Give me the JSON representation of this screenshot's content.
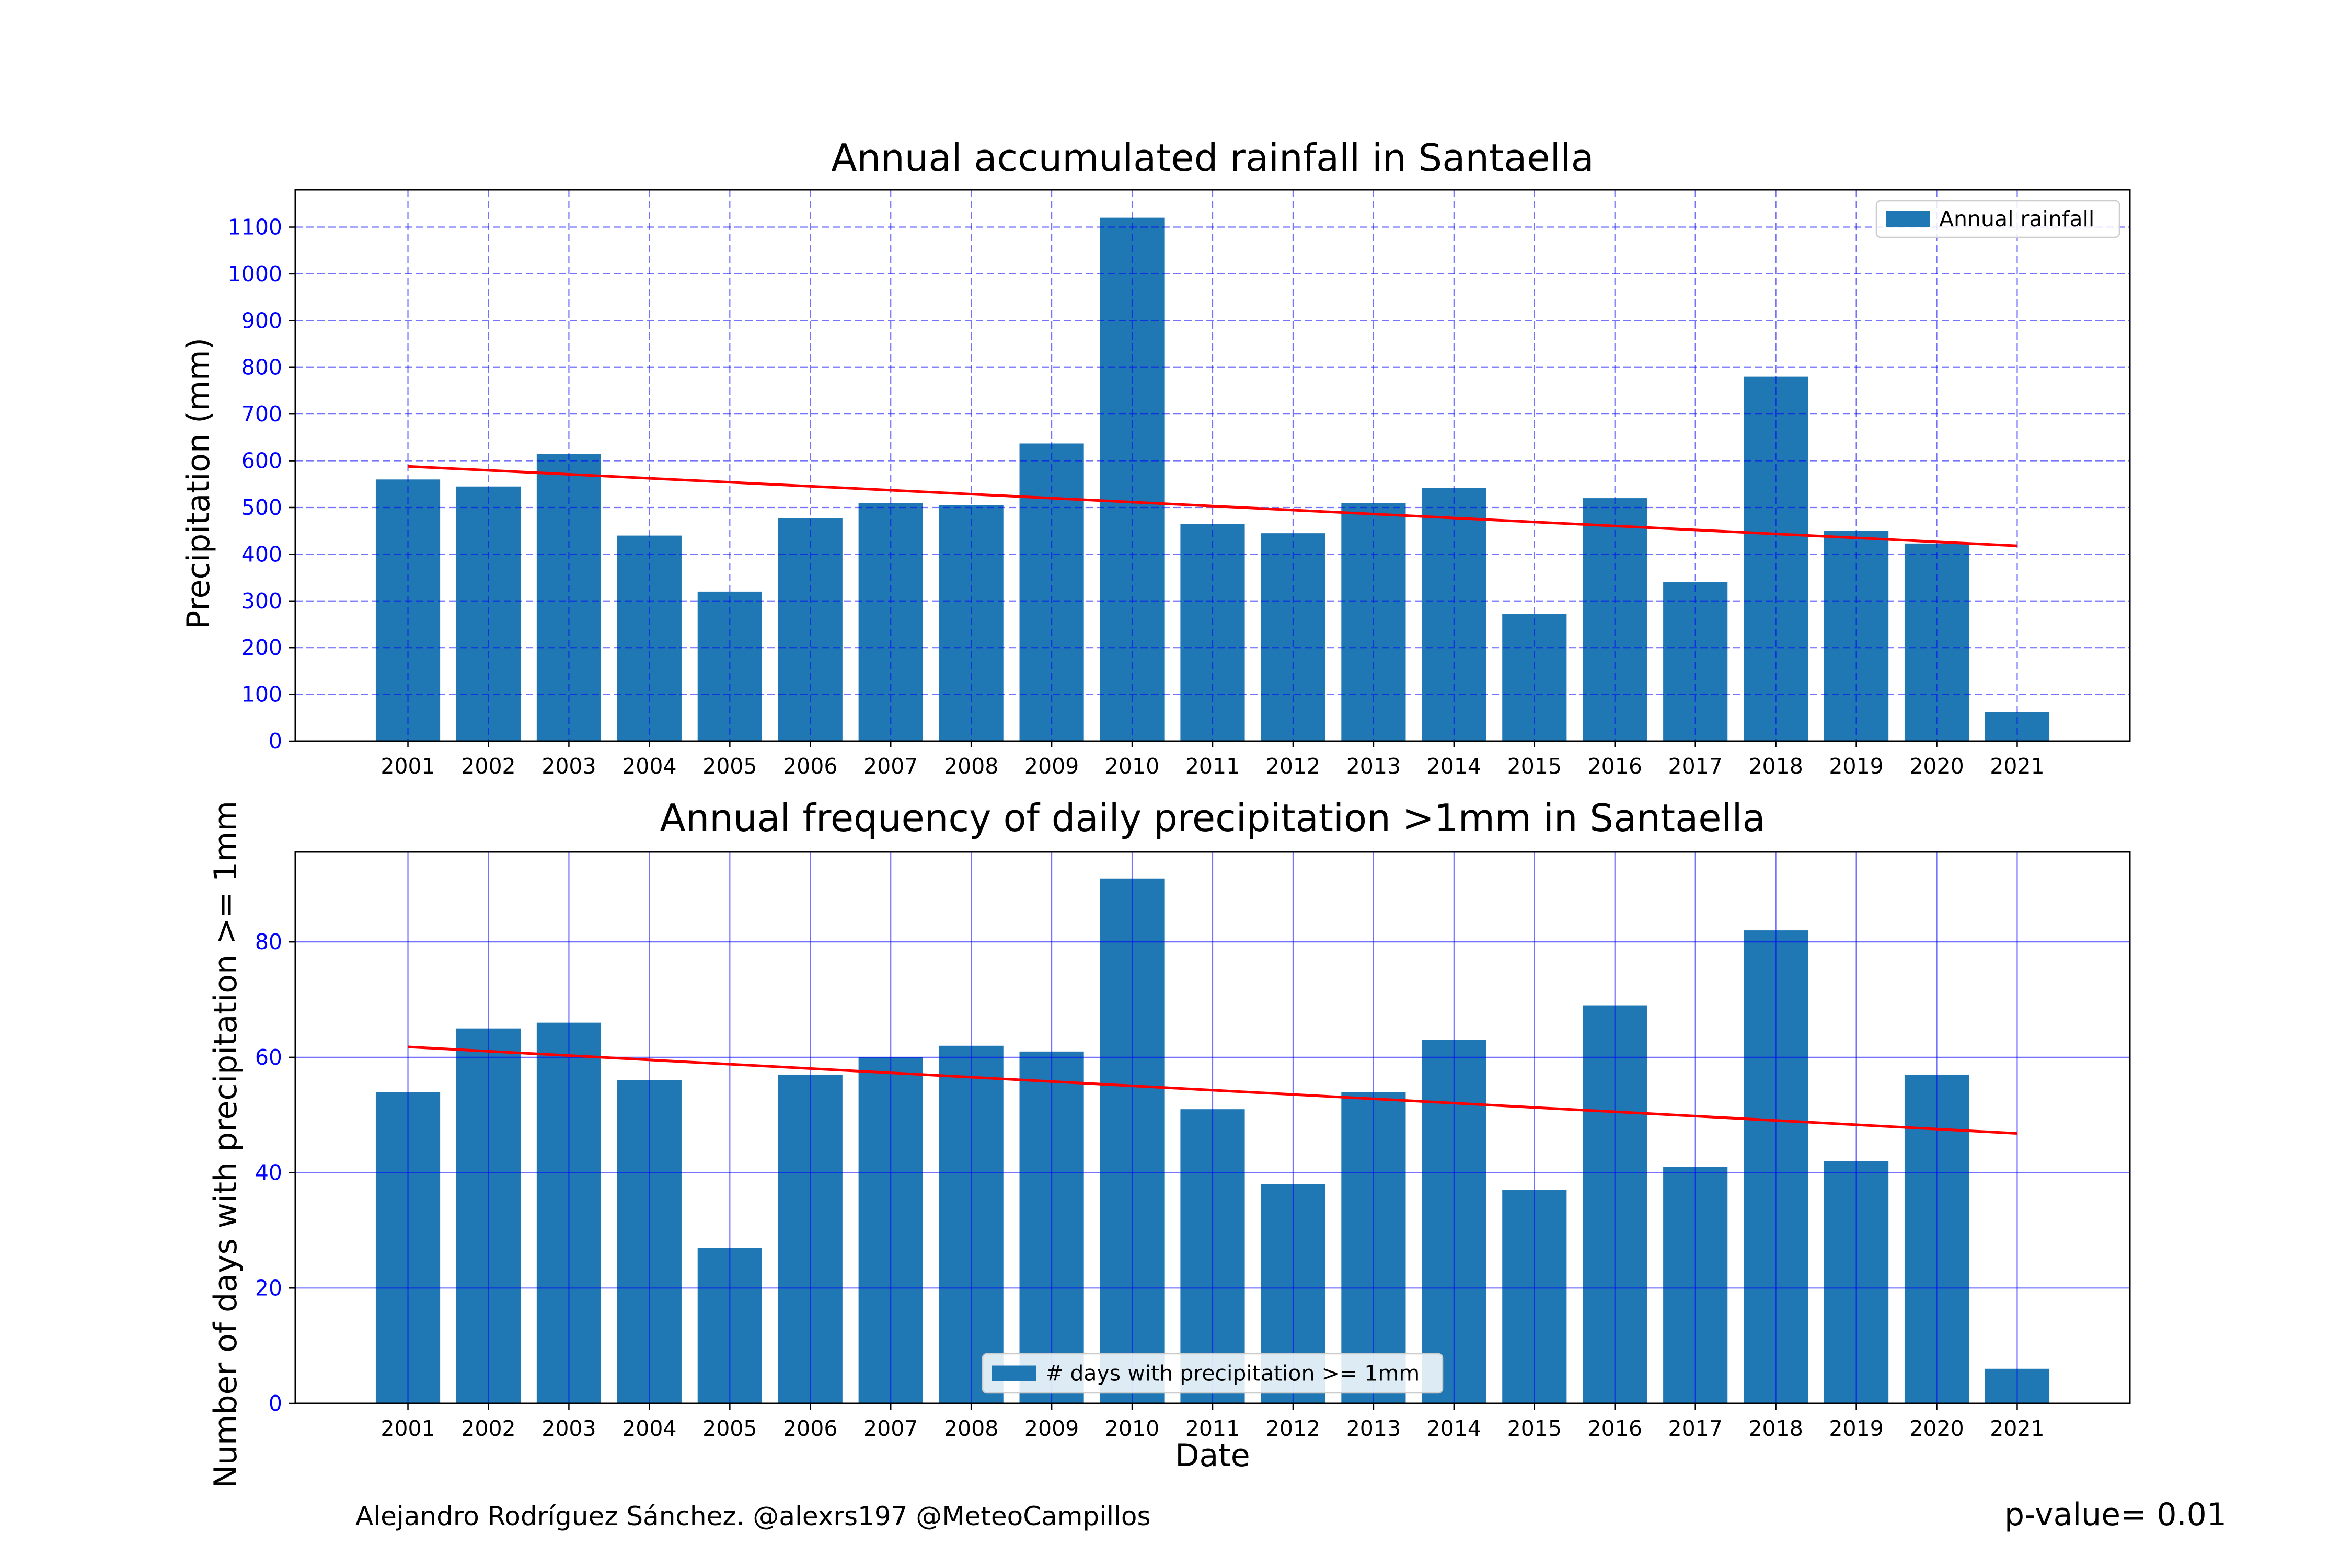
{
  "colors": {
    "bar": "#1f77b4",
    "trend": "#ff0000",
    "grid": "#0000ff",
    "tick_y": "#0000ff",
    "text": "#000000"
  },
  "chart_data": [
    {
      "type": "bar",
      "title": "Annual accumulated rainfall in Santaella",
      "xlabel": "",
      "ylabel": "Precipitation (mm)",
      "categories": [
        "2001",
        "2002",
        "2003",
        "2004",
        "2005",
        "2006",
        "2007",
        "2008",
        "2009",
        "2010",
        "2011",
        "2012",
        "2013",
        "2014",
        "2015",
        "2016",
        "2017",
        "2018",
        "2019",
        "2020",
        "2021"
      ],
      "series": [
        {
          "name": "Annual rainfall",
          "values": [
            560,
            545,
            615,
            440,
            320,
            477,
            510,
            505,
            637,
            1120,
            465,
            445,
            510,
            542,
            272,
            520,
            340,
            780,
            450,
            423,
            62
          ]
        }
      ],
      "trend": [
        588,
        418
      ],
      "ylim": [
        0,
        1180
      ],
      "yticks": [
        0,
        100,
        200,
        300,
        400,
        500,
        600,
        700,
        800,
        900,
        1000,
        1100
      ],
      "grid": "dashed",
      "legend_position": "top-right"
    },
    {
      "type": "bar",
      "title": "Annual frequency of daily precipitation >1mm in Santaella",
      "xlabel": "Date",
      "ylabel": "Number of days with precipitation >= 1mm",
      "categories": [
        "2001",
        "2002",
        "2003",
        "2004",
        "2005",
        "2006",
        "2007",
        "2008",
        "2009",
        "2010",
        "2011",
        "2012",
        "2013",
        "2014",
        "2015",
        "2016",
        "2017",
        "2018",
        "2019",
        "2020",
        "2021"
      ],
      "series": [
        {
          "name": "# days with precipitation >= 1mm",
          "values": [
            54,
            65,
            66,
            56,
            27,
            57,
            60,
            62,
            61,
            91,
            51,
            38,
            54,
            63,
            37,
            69,
            41,
            82,
            42,
            57,
            6
          ]
        }
      ],
      "trend": [
        61.8,
        46.8
      ],
      "ylim": [
        0,
        95.6
      ],
      "yticks": [
        0,
        20,
        40,
        60,
        80
      ],
      "grid": "solid",
      "legend_position": "bottom-center"
    }
  ],
  "footer": {
    "author": "Alejandro Rodríguez Sánchez. @alexrs197 @MeteoCampillos",
    "pvalue": "p-value= 0.01"
  }
}
